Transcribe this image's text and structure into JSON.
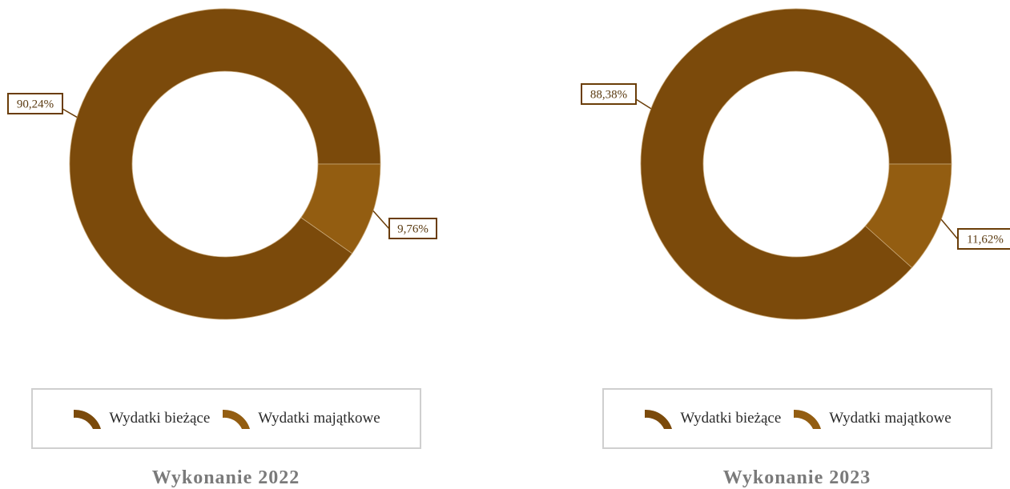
{
  "colors": {
    "current": "#7b4a0b",
    "capital": "#935d11",
    "label_border": "#6a3d08",
    "legend_border": "#cfcfcf",
    "title": "#7a7a7a"
  },
  "legend_icons": [
    "donut-segment-icon",
    "donut-segment-icon"
  ],
  "chart_data": [
    {
      "type": "pie",
      "donut": true,
      "title": "Wykonanie 2022",
      "slices": [
        {
          "label": "Wydatki bieżące",
          "value": 90.24,
          "display": "90,24%"
        },
        {
          "label": "Wydatki majątkowe",
          "value": 9.76,
          "display": "9,76%"
        }
      ],
      "legend": [
        "Wydatki bieżące",
        "Wydatki majątkowe"
      ],
      "legend_position": "bottom"
    },
    {
      "type": "pie",
      "donut": true,
      "title": "Wykonanie 2023",
      "slices": [
        {
          "label": "Wydatki bieżące",
          "value": 88.38,
          "display": "88,38%"
        },
        {
          "label": "Wydatki majątkowe",
          "value": 11.62,
          "display": "11,62%"
        }
      ],
      "legend": [
        "Wydatki bieżące",
        "Wydatki majątkowe"
      ],
      "legend_position": "bottom"
    }
  ]
}
